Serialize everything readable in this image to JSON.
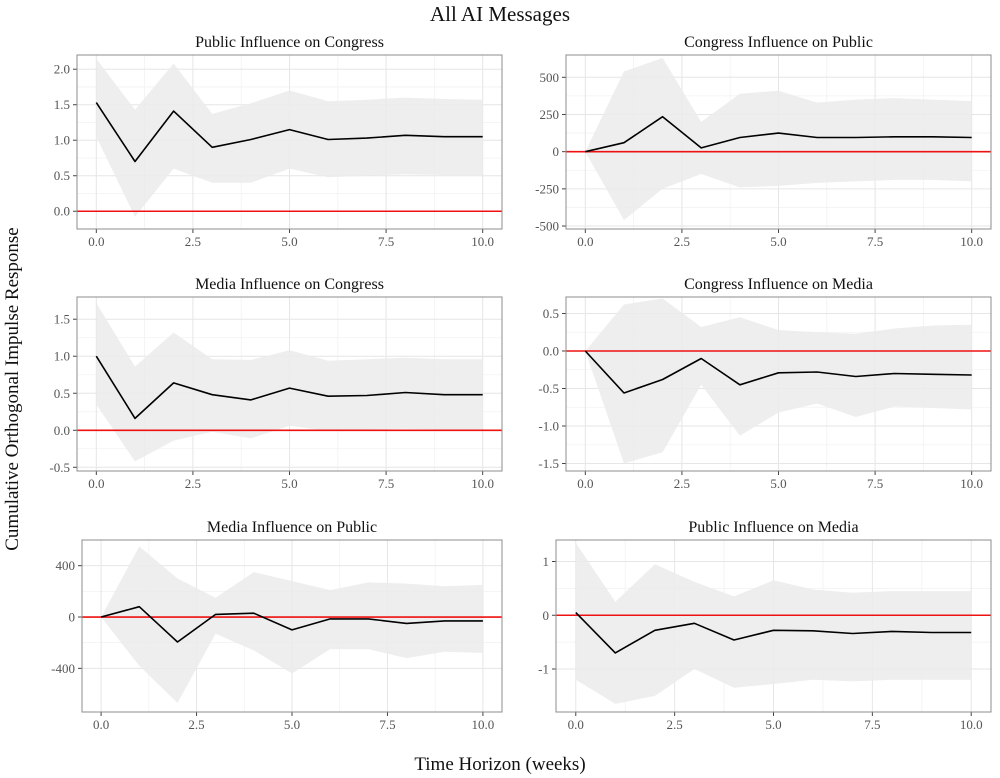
{
  "title": "All AI Messages",
  "xlabel": "Time Horizon (weeks)",
  "ylabel": "Cumulative Orthogonal Impulse Response",
  "colors": {
    "line": "#000000",
    "band": "#ebebeb",
    "zero": "#ee1111",
    "grid": "#e6e6e6",
    "frame": "#8c8c8c",
    "tick_text": "#555555"
  },
  "chart_data": [
    {
      "type": "line",
      "title": "Public Influence on Congress",
      "x": [
        0,
        1,
        2,
        3,
        4,
        5,
        6,
        7,
        8,
        9,
        10
      ],
      "values": [
        1.53,
        0.7,
        1.41,
        0.9,
        1.01,
        1.15,
        1.01,
        1.03,
        1.07,
        1.05,
        1.05
      ],
      "ci_lower": [
        1.05,
        -0.08,
        0.6,
        0.4,
        0.4,
        0.6,
        0.48,
        0.5,
        0.52,
        0.51,
        0.51
      ],
      "ci_upper": [
        2.15,
        1.43,
        2.08,
        1.37,
        1.52,
        1.7,
        1.55,
        1.57,
        1.6,
        1.58,
        1.57
      ],
      "reference_line": 0,
      "xlim": [
        -0.5,
        10.5
      ],
      "ylim": [
        -0.25,
        2.2
      ],
      "xticks": [
        0,
        2.5,
        5,
        7.5,
        10
      ],
      "xtick_labels": [
        "0.0",
        "2.5",
        "5.0",
        "7.5",
        "10.0"
      ],
      "yticks": [
        0,
        0.5,
        1,
        1.5,
        2
      ],
      "ytick_labels": [
        "0.0",
        "0.5",
        "1.0",
        "1.5",
        "2.0"
      ],
      "grid": true
    },
    {
      "type": "line",
      "title": "Congress Influence on Public",
      "x": [
        0,
        1,
        2,
        3,
        4,
        5,
        6,
        7,
        8,
        9,
        10
      ],
      "values": [
        0,
        60,
        235,
        25,
        95,
        125,
        95,
        95,
        100,
        100,
        95
      ],
      "ci_lower": [
        0,
        -460,
        -250,
        -150,
        -240,
        -230,
        -210,
        -200,
        -190,
        -190,
        -200
      ],
      "ci_upper": [
        0,
        540,
        630,
        200,
        390,
        410,
        330,
        350,
        360,
        350,
        340
      ],
      "reference_line": 0,
      "xlim": [
        -0.5,
        10.5
      ],
      "ylim": [
        -520,
        650
      ],
      "xticks": [
        0,
        2.5,
        5,
        7.5,
        10
      ],
      "xtick_labels": [
        "0.0",
        "2.5",
        "5.0",
        "7.5",
        "10.0"
      ],
      "yticks": [
        -500,
        -250,
        0,
        250,
        500
      ],
      "ytick_labels": [
        "-500",
        "-250",
        "0",
        "250",
        "500"
      ],
      "grid": true
    },
    {
      "type": "line",
      "title": "Media Influence on Congress",
      "x": [
        0,
        1,
        2,
        3,
        4,
        5,
        6,
        7,
        8,
        9,
        10
      ],
      "values": [
        1.0,
        0.16,
        0.64,
        0.48,
        0.41,
        0.57,
        0.46,
        0.47,
        0.51,
        0.48,
        0.48
      ],
      "ci_lower": [
        0.35,
        -0.42,
        -0.14,
        -0.02,
        -0.11,
        0.06,
        -0.01,
        0.01,
        0.02,
        0.01,
        0.01
      ],
      "ci_upper": [
        1.72,
        0.86,
        1.32,
        0.96,
        0.95,
        1.08,
        0.94,
        0.96,
        0.98,
        0.96,
        0.96
      ],
      "reference_line": 0,
      "xlim": [
        -0.5,
        10.5
      ],
      "ylim": [
        -0.55,
        1.8
      ],
      "xticks": [
        0,
        2.5,
        5,
        7.5,
        10
      ],
      "xtick_labels": [
        "0.0",
        "2.5",
        "5.0",
        "7.5",
        "10.0"
      ],
      "yticks": [
        -0.5,
        0,
        0.5,
        1,
        1.5
      ],
      "ytick_labels": [
        "-0.5",
        "0.0",
        "0.5",
        "1.0",
        "1.5"
      ],
      "grid": true
    },
    {
      "type": "line",
      "title": "Congress Influence on Media",
      "x": [
        0,
        1,
        2,
        3,
        4,
        5,
        6,
        7,
        8,
        9,
        10
      ],
      "values": [
        0,
        -0.56,
        -0.38,
        -0.1,
        -0.45,
        -0.29,
        -0.28,
        -0.34,
        -0.3,
        -0.31,
        -0.32
      ],
      "ci_lower": [
        0,
        -1.5,
        -1.35,
        -0.45,
        -1.13,
        -0.82,
        -0.7,
        -0.88,
        -0.74,
        -0.76,
        -0.78
      ],
      "ci_upper": [
        0,
        0.62,
        0.7,
        0.32,
        0.45,
        0.28,
        0.25,
        0.23,
        0.3,
        0.34,
        0.35
      ],
      "reference_line": 0,
      "xlim": [
        -0.5,
        10.5
      ],
      "ylim": [
        -1.6,
        0.72
      ],
      "xticks": [
        0,
        2.5,
        5,
        7.5,
        10
      ],
      "xtick_labels": [
        "0.0",
        "2.5",
        "5.0",
        "7.5",
        "10.0"
      ],
      "yticks": [
        -1.5,
        -1,
        -0.5,
        0,
        0.5
      ],
      "ytick_labels": [
        "-1.5",
        "-1.0",
        "-0.5",
        "0.0",
        "0.5"
      ],
      "grid": true
    },
    {
      "type": "line",
      "title": "Media Influence on Public",
      "x": [
        0,
        1,
        2,
        3,
        4,
        5,
        6,
        7,
        8,
        9,
        10
      ],
      "values": [
        0,
        80,
        -195,
        20,
        30,
        -100,
        -15,
        -15,
        -50,
        -30,
        -30
      ],
      "ci_lower": [
        0,
        -380,
        -670,
        -130,
        -260,
        -440,
        -250,
        -250,
        -320,
        -270,
        -280
      ],
      "ci_upper": [
        0,
        550,
        300,
        150,
        350,
        280,
        210,
        270,
        260,
        240,
        250
      ],
      "reference_line": 0,
      "xlim": [
        -0.5,
        10.5
      ],
      "ylim": [
        -740,
        600
      ],
      "xticks": [
        0,
        2.5,
        5,
        7.5,
        10
      ],
      "xtick_labels": [
        "0.0",
        "2.5",
        "5.0",
        "7.5",
        "10.0"
      ],
      "yticks": [
        -400,
        0,
        400
      ],
      "ytick_labels": [
        "-400",
        "0",
        "400"
      ],
      "grid": true
    },
    {
      "type": "line",
      "title": "Public Influence on Media",
      "x": [
        0,
        1,
        2,
        3,
        4,
        5,
        6,
        7,
        8,
        9,
        10
      ],
      "values": [
        0.05,
        -0.7,
        -0.28,
        -0.15,
        -0.46,
        -0.28,
        -0.29,
        -0.34,
        -0.3,
        -0.32,
        -0.32
      ],
      "ci_lower": [
        -1.2,
        -1.65,
        -1.5,
        -1.0,
        -1.35,
        -1.28,
        -1.2,
        -1.23,
        -1.2,
        -1.2,
        -1.2
      ],
      "ci_upper": [
        1.35,
        0.25,
        0.95,
        0.62,
        0.35,
        0.65,
        0.48,
        0.42,
        0.45,
        0.45,
        0.45
      ],
      "reference_line": 0,
      "xlim": [
        -0.5,
        10.5
      ],
      "ylim": [
        -1.8,
        1.4
      ],
      "xticks": [
        0,
        2.5,
        5,
        7.5,
        10
      ],
      "xtick_labels": [
        "0.0",
        "2.5",
        "5.0",
        "7.5",
        "10.0"
      ],
      "yticks": [
        -1,
        0,
        1
      ],
      "ytick_labels": [
        "-1",
        "0",
        "1"
      ],
      "grid": true
    }
  ]
}
